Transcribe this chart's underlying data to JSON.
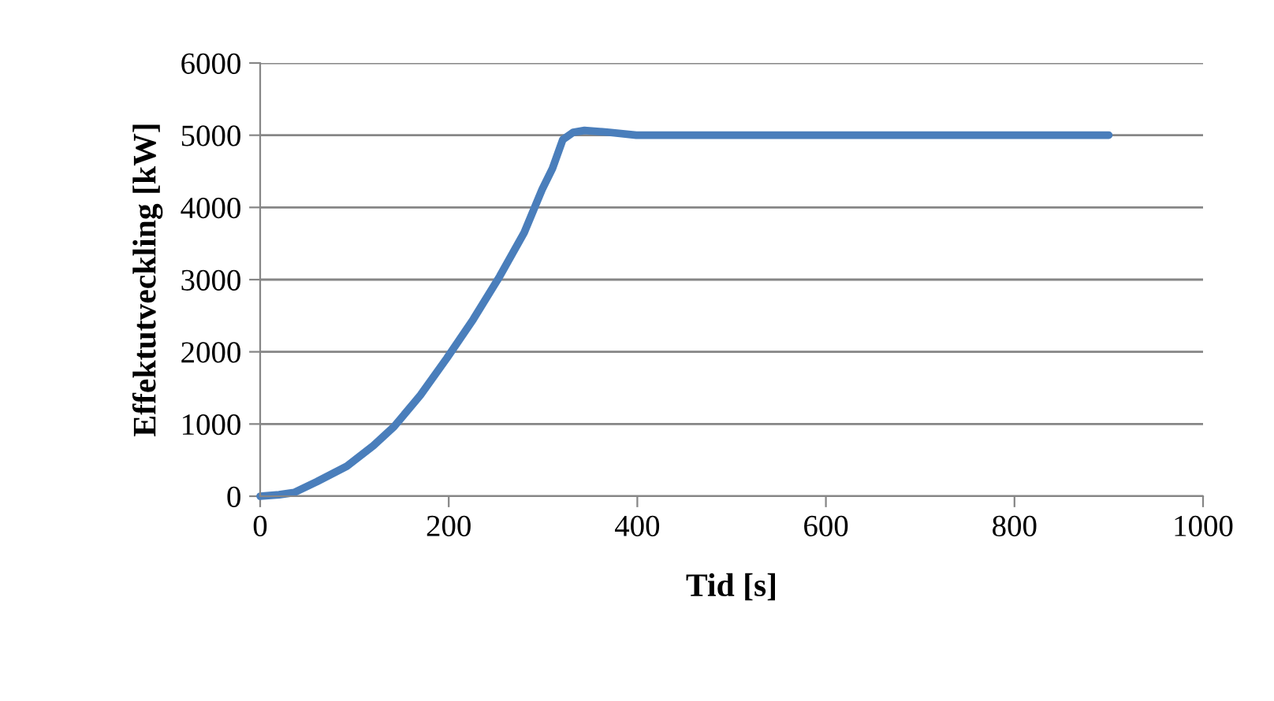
{
  "chart_data": {
    "type": "line",
    "xlabel": "Tid [s]",
    "ylabel": "Effektutveckling [kW]",
    "series": [
      {
        "color": "#4a7ebb",
        "x": [
          0,
          20,
          36,
          60,
          92,
          120,
          142,
          170,
          198,
          226,
          254,
          280,
          299,
          310,
          321,
          332,
          344,
          370,
          399,
          500,
          700,
          900
        ],
        "values": [
          0,
          20,
          51,
          200,
          416,
          700,
          964,
          1400,
          1912,
          2450,
          3044,
          3650,
          4248,
          4540,
          4940,
          5040,
          5066,
          5040,
          5000,
          5000,
          5000,
          5000
        ]
      }
    ],
    "xlim": [
      0,
      1000
    ],
    "xticks": [
      0,
      200,
      400,
      600,
      800,
      1000
    ],
    "ylim": [
      0,
      6000
    ],
    "yticks": [
      0,
      1000,
      2000,
      3000,
      4000,
      5000,
      6000
    ],
    "grid": "y",
    "legend": false,
    "marker": "none",
    "line_style": "solid"
  }
}
